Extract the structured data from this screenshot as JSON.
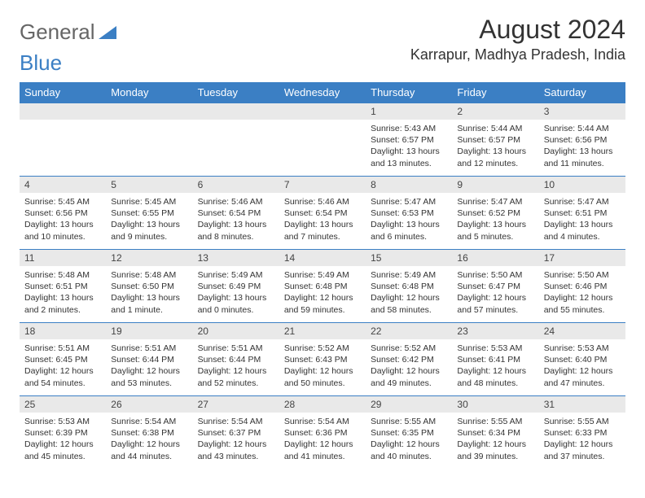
{
  "logo": {
    "part1": "General",
    "part2": "Blue"
  },
  "header": {
    "month_title": "August 2024",
    "location": "Karrapur, Madhya Pradesh, India"
  },
  "colors": {
    "header_bg": "#3b7fc4",
    "header_text": "#ffffff",
    "daynum_bg": "#e9e9e9",
    "row_border": "#3b7fc4",
    "body_text": "#333333"
  },
  "fonts": {
    "title_size_pt": 24,
    "location_size_pt": 14,
    "weekday_size_pt": 10,
    "daynum_size_pt": 9,
    "cell_text_size_pt": 8
  },
  "weekdays": [
    "Sunday",
    "Monday",
    "Tuesday",
    "Wednesday",
    "Thursday",
    "Friday",
    "Saturday"
  ],
  "grid": [
    [
      {
        "day": "",
        "lines": []
      },
      {
        "day": "",
        "lines": []
      },
      {
        "day": "",
        "lines": []
      },
      {
        "day": "",
        "lines": []
      },
      {
        "day": "1",
        "lines": [
          "Sunrise: 5:43 AM",
          "Sunset: 6:57 PM",
          "Daylight: 13 hours and 13 minutes."
        ]
      },
      {
        "day": "2",
        "lines": [
          "Sunrise: 5:44 AM",
          "Sunset: 6:57 PM",
          "Daylight: 13 hours and 12 minutes."
        ]
      },
      {
        "day": "3",
        "lines": [
          "Sunrise: 5:44 AM",
          "Sunset: 6:56 PM",
          "Daylight: 13 hours and 11 minutes."
        ]
      }
    ],
    [
      {
        "day": "4",
        "lines": [
          "Sunrise: 5:45 AM",
          "Sunset: 6:56 PM",
          "Daylight: 13 hours and 10 minutes."
        ]
      },
      {
        "day": "5",
        "lines": [
          "Sunrise: 5:45 AM",
          "Sunset: 6:55 PM",
          "Daylight: 13 hours and 9 minutes."
        ]
      },
      {
        "day": "6",
        "lines": [
          "Sunrise: 5:46 AM",
          "Sunset: 6:54 PM",
          "Daylight: 13 hours and 8 minutes."
        ]
      },
      {
        "day": "7",
        "lines": [
          "Sunrise: 5:46 AM",
          "Sunset: 6:54 PM",
          "Daylight: 13 hours and 7 minutes."
        ]
      },
      {
        "day": "8",
        "lines": [
          "Sunrise: 5:47 AM",
          "Sunset: 6:53 PM",
          "Daylight: 13 hours and 6 minutes."
        ]
      },
      {
        "day": "9",
        "lines": [
          "Sunrise: 5:47 AM",
          "Sunset: 6:52 PM",
          "Daylight: 13 hours and 5 minutes."
        ]
      },
      {
        "day": "10",
        "lines": [
          "Sunrise: 5:47 AM",
          "Sunset: 6:51 PM",
          "Daylight: 13 hours and 4 minutes."
        ]
      }
    ],
    [
      {
        "day": "11",
        "lines": [
          "Sunrise: 5:48 AM",
          "Sunset: 6:51 PM",
          "Daylight: 13 hours and 2 minutes."
        ]
      },
      {
        "day": "12",
        "lines": [
          "Sunrise: 5:48 AM",
          "Sunset: 6:50 PM",
          "Daylight: 13 hours and 1 minute."
        ]
      },
      {
        "day": "13",
        "lines": [
          "Sunrise: 5:49 AM",
          "Sunset: 6:49 PM",
          "Daylight: 13 hours and 0 minutes."
        ]
      },
      {
        "day": "14",
        "lines": [
          "Sunrise: 5:49 AM",
          "Sunset: 6:48 PM",
          "Daylight: 12 hours and 59 minutes."
        ]
      },
      {
        "day": "15",
        "lines": [
          "Sunrise: 5:49 AM",
          "Sunset: 6:48 PM",
          "Daylight: 12 hours and 58 minutes."
        ]
      },
      {
        "day": "16",
        "lines": [
          "Sunrise: 5:50 AM",
          "Sunset: 6:47 PM",
          "Daylight: 12 hours and 57 minutes."
        ]
      },
      {
        "day": "17",
        "lines": [
          "Sunrise: 5:50 AM",
          "Sunset: 6:46 PM",
          "Daylight: 12 hours and 55 minutes."
        ]
      }
    ],
    [
      {
        "day": "18",
        "lines": [
          "Sunrise: 5:51 AM",
          "Sunset: 6:45 PM",
          "Daylight: 12 hours and 54 minutes."
        ]
      },
      {
        "day": "19",
        "lines": [
          "Sunrise: 5:51 AM",
          "Sunset: 6:44 PM",
          "Daylight: 12 hours and 53 minutes."
        ]
      },
      {
        "day": "20",
        "lines": [
          "Sunrise: 5:51 AM",
          "Sunset: 6:44 PM",
          "Daylight: 12 hours and 52 minutes."
        ]
      },
      {
        "day": "21",
        "lines": [
          "Sunrise: 5:52 AM",
          "Sunset: 6:43 PM",
          "Daylight: 12 hours and 50 minutes."
        ]
      },
      {
        "day": "22",
        "lines": [
          "Sunrise: 5:52 AM",
          "Sunset: 6:42 PM",
          "Daylight: 12 hours and 49 minutes."
        ]
      },
      {
        "day": "23",
        "lines": [
          "Sunrise: 5:53 AM",
          "Sunset: 6:41 PM",
          "Daylight: 12 hours and 48 minutes."
        ]
      },
      {
        "day": "24",
        "lines": [
          "Sunrise: 5:53 AM",
          "Sunset: 6:40 PM",
          "Daylight: 12 hours and 47 minutes."
        ]
      }
    ],
    [
      {
        "day": "25",
        "lines": [
          "Sunrise: 5:53 AM",
          "Sunset: 6:39 PM",
          "Daylight: 12 hours and 45 minutes."
        ]
      },
      {
        "day": "26",
        "lines": [
          "Sunrise: 5:54 AM",
          "Sunset: 6:38 PM",
          "Daylight: 12 hours and 44 minutes."
        ]
      },
      {
        "day": "27",
        "lines": [
          "Sunrise: 5:54 AM",
          "Sunset: 6:37 PM",
          "Daylight: 12 hours and 43 minutes."
        ]
      },
      {
        "day": "28",
        "lines": [
          "Sunrise: 5:54 AM",
          "Sunset: 6:36 PM",
          "Daylight: 12 hours and 41 minutes."
        ]
      },
      {
        "day": "29",
        "lines": [
          "Sunrise: 5:55 AM",
          "Sunset: 6:35 PM",
          "Daylight: 12 hours and 40 minutes."
        ]
      },
      {
        "day": "30",
        "lines": [
          "Sunrise: 5:55 AM",
          "Sunset: 6:34 PM",
          "Daylight: 12 hours and 39 minutes."
        ]
      },
      {
        "day": "31",
        "lines": [
          "Sunrise: 5:55 AM",
          "Sunset: 6:33 PM",
          "Daylight: 12 hours and 37 minutes."
        ]
      }
    ]
  ]
}
